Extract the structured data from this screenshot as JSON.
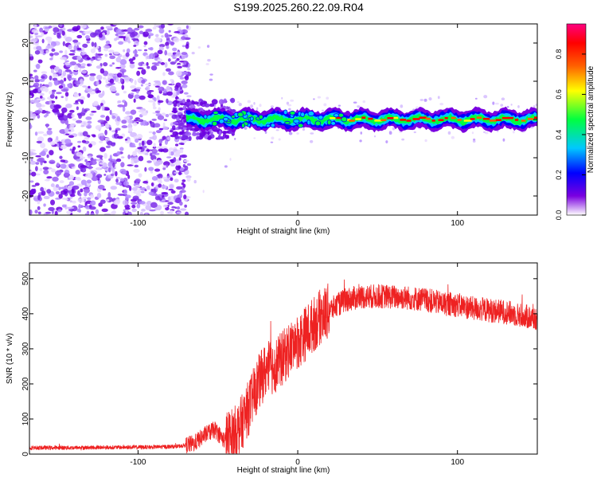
{
  "chart_data": [
    {
      "type": "heatmap",
      "title": "S199.2025.260.22.09.R04",
      "xlabel": "Height of straight line (km)",
      "ylabel": "Frequency (Hz)",
      "xlim": [
        -168,
        150
      ],
      "ylim": [
        -25,
        25
      ],
      "x_ticks": [
        -100,
        0,
        100
      ],
      "x_tick_labels": [
        "-100",
        "0",
        "100"
      ],
      "y_ticks": [
        20,
        10,
        0,
        -10,
        -20
      ],
      "y_tick_labels": [
        "20",
        "10",
        "0",
        "-10",
        "-20"
      ],
      "colorbar": {
        "label": "Normalized spectral amplitude",
        "range": [
          0,
          0.95
        ],
        "ticks": [
          0,
          0.2,
          0.4,
          0.6,
          0.8
        ],
        "tick_labels": [
          "0.0",
          "0.2",
          "0.4",
          "0.6",
          "0.8"
        ],
        "colormap": [
          "#ffffff",
          "#7a00e0",
          "#0000ff",
          "#00c8ff",
          "#00ff40",
          "#ffff00",
          "#ff6000",
          "#ff0000",
          "#ff0080"
        ]
      },
      "signal_band": {
        "x_range": [
          -70,
          150
        ],
        "center_freq_hz": 0,
        "note": "narrow high-amplitude band near 0 Hz; broadband noise for heights below about -70 km"
      }
    },
    {
      "type": "line",
      "xlabel": "Height of straight line (km)",
      "ylabel": "SNR (10 * v/v)",
      "xlim": [
        -168,
        150
      ],
      "ylim": [
        0,
        545
      ],
      "x_ticks": [
        -100,
        0,
        100
      ],
      "x_tick_labels": [
        "-100",
        "0",
        "100"
      ],
      "y_ticks": [
        0,
        100,
        200,
        300,
        400,
        500
      ],
      "y_tick_labels": [
        "0",
        "100",
        "200",
        "300",
        "400",
        "500"
      ],
      "series": [
        {
          "name": "SNR",
          "color": "#ee2222",
          "x": [
            -168,
            -150,
            -120,
            -90,
            -75,
            -65,
            -58,
            -52,
            -46,
            -40,
            -35,
            -30,
            -25,
            -20,
            -15,
            -10,
            -5,
            0,
            5,
            10,
            15,
            20,
            25,
            30,
            40,
            50,
            60,
            70,
            80,
            90,
            100,
            110,
            120,
            130,
            140,
            150
          ],
          "y": [
            18,
            18,
            19,
            20,
            22,
            30,
            55,
            70,
            40,
            55,
            90,
            140,
            200,
            240,
            250,
            270,
            300,
            320,
            345,
            370,
            395,
            410,
            425,
            440,
            448,
            450,
            448,
            445,
            440,
            430,
            425,
            415,
            410,
            405,
            395,
            385
          ]
        }
      ]
    }
  ]
}
